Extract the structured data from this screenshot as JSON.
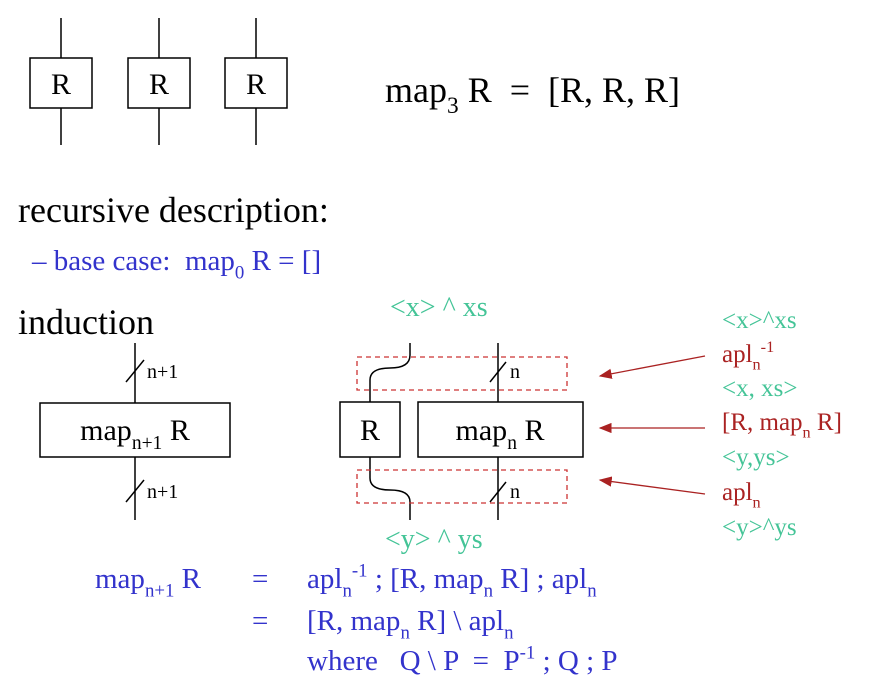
{
  "top_boxes": [
    "R",
    "R",
    "R"
  ],
  "map3": [
    {
      "text": "map"
    },
    {
      "text": "3",
      "pos": "sub"
    },
    {
      "text": " R  =  [R, R, R]"
    }
  ],
  "heading_recursive": "recursive description:",
  "base_case": [
    {
      "text": "– base case:  map"
    },
    {
      "text": "0",
      "pos": "sub"
    },
    {
      "text": " R = []"
    }
  ],
  "heading_induction": "induction",
  "left": {
    "top_label": "n+1",
    "box": [
      {
        "text": "map"
      },
      {
        "text": "n+1",
        "pos": "sub"
      },
      {
        "text": " R"
      }
    ],
    "bottom_label": "n+1"
  },
  "middle": {
    "top": "<x> ^ xs",
    "box_r": "R",
    "box_map": [
      {
        "text": "map"
      },
      {
        "text": "n",
        "pos": "sub"
      },
      {
        "text": " R"
      }
    ],
    "top_label": "n",
    "bottom_label": "n",
    "bottom": "<y> ^ ys"
  },
  "right": [
    [
      {
        "text": "<x>^xs"
      }
    ],
    [
      {
        "text": "apl"
      },
      {
        "text": "n",
        "pos": "sub"
      },
      {
        "text": "-1",
        "pos": "sup"
      }
    ],
    [
      {
        "text": "<x, xs>"
      }
    ],
    [
      {
        "text": "[R, map"
      },
      {
        "text": "n",
        "pos": "sub"
      },
      {
        "text": " R]"
      }
    ],
    [
      {
        "text": "<y,ys>"
      }
    ],
    [
      {
        "text": "apl"
      },
      {
        "text": "n",
        "pos": "sub"
      }
    ],
    [
      {
        "text": "<y>^ys"
      }
    ]
  ],
  "equations": [
    {
      "lhs": [
        {
          "text": "map"
        },
        {
          "text": "n+1",
          "pos": "sub"
        },
        {
          "text": " R"
        }
      ],
      "eq": "=",
      "rhs": [
        {
          "text": "apl"
        },
        {
          "text": "n",
          "pos": "sub"
        },
        {
          "text": "-1",
          "pos": "sup"
        },
        {
          "text": " ; [R, map"
        },
        {
          "text": "n",
          "pos": "sub"
        },
        {
          "text": " R] ; apl"
        },
        {
          "text": "n",
          "pos": "sub"
        }
      ]
    },
    {
      "eq": "=",
      "rhs": [
        {
          "text": "[R, map"
        },
        {
          "text": "n",
          "pos": "sub"
        },
        {
          "text": " R] \\ apl"
        },
        {
          "text": "n",
          "pos": "sub"
        }
      ]
    },
    {
      "rhs": [
        {
          "text": "where   Q \\ P  =  P"
        },
        {
          "text": "-1",
          "pos": "sup"
        },
        {
          "text": " ; Q ; P"
        }
      ]
    }
  ]
}
